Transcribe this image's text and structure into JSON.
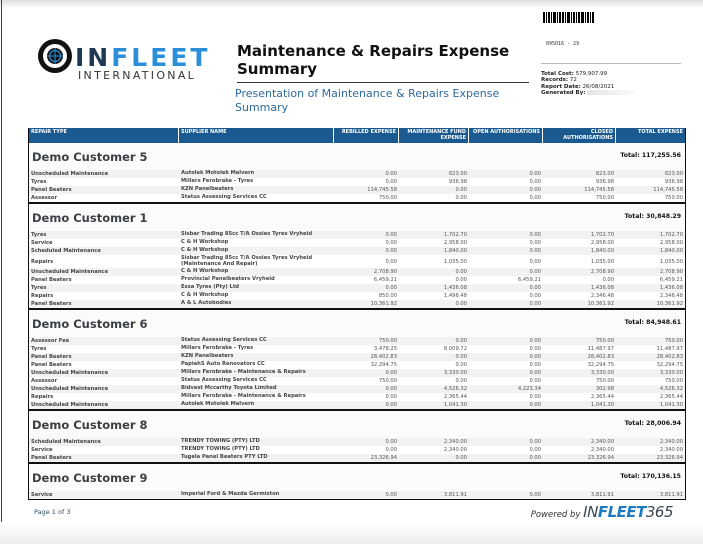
{
  "logo": {
    "name": "INFLEET",
    "sub": "INTERNATIONAL"
  },
  "report": {
    "title": "Maintenance & Repairs Expense Summary",
    "subtitle": "Presentation of Maintenance & Repairs Expense Summary"
  },
  "barcode_text": "095016 - 29",
  "meta": {
    "total_cost_label": "Total Cost:",
    "total_cost": "579,907.99",
    "records_label": "Records:",
    "records": "72",
    "report_date_label": "Report Date:",
    "report_date": "26/08/2021",
    "generated_by_label": "Generated By:"
  },
  "columns": [
    "REPAIR TYPE",
    "SUPPLIER NAME",
    "REBILLED EXPENSE",
    "MAINTENANCE FUND EXPENSE",
    "OPEN AUTHORISATIONS",
    "CLOSED AUTHORISATIONS",
    "TOTAL EXPENSE"
  ],
  "groups": [
    {
      "name": "Demo Customer 5",
      "total": "Total: 117,255.56",
      "rows": [
        [
          "Unscheduled Maintenance",
          "Autolek Motolek Malvern",
          "0.00",
          "823.00",
          "0.00",
          "823.00",
          "823.00"
        ],
        [
          "Tyres",
          "Millers Ferobrake - Tyres",
          "0.00",
          "936.98",
          "0.00",
          "936.98",
          "936.98"
        ],
        [
          "Panel Beaters",
          "KZN Panelbeaters",
          "114,745.58",
          "0.00",
          "0.00",
          "114,745.58",
          "114,745.58"
        ],
        [
          "Assessor",
          "Status Assessing Services CC",
          "750.00",
          "0.00",
          "0.00",
          "750.00",
          "750.00"
        ]
      ]
    },
    {
      "name": "Demo Customer 1",
      "total": "Total: 30,848.29",
      "rows": [
        [
          "Tyres",
          "Sisbar Trading 85cc T/A Ossies Tyres Vryheid",
          "0.00",
          "1,702.70",
          "0.00",
          "1,702.70",
          "1,702.70"
        ],
        [
          "Service",
          "C & H Workshop",
          "0.00",
          "2,958.00",
          "0.00",
          "2,958.00",
          "2,958.00"
        ],
        [
          "Scheduled Maintenance",
          "C & H Workshop",
          "0.00",
          "1,840.00",
          "0.00",
          "1,840.00",
          "1,840.00"
        ],
        [
          "Repairs",
          "Sisbar Trading 85cc T/A Ossies Tyres Vryheid (Maintenance And Repair)",
          "0.00",
          "1,035.00",
          "0.00",
          "1,035.00",
          "1,035.00"
        ],
        [
          "Unscheduled Maintenance",
          "C & H Workshop",
          "2,708.90",
          "0.00",
          "0.00",
          "2,708.90",
          "2,708.90"
        ],
        [
          "Panel Beaters",
          "Provincial Panelbeaters Vryheid",
          "6,459.21",
          "0.00",
          "6,459.21",
          "0.00",
          "6,459.21"
        ],
        [
          "Tyres",
          "Essa Tyres (Pty) Ltd",
          "0.00",
          "1,436.08",
          "0.00",
          "1,436.08",
          "1,436.08"
        ],
        [
          "Repairs",
          "C & H Workshop",
          "850.00",
          "1,496.48",
          "0.00",
          "2,346.48",
          "2,346.48"
        ],
        [
          "Panel Beaters",
          "A & L Autobodies",
          "10,361.92",
          "0.00",
          "0.00",
          "10,361.92",
          "10,361.92"
        ]
      ]
    },
    {
      "name": "Demo Customer 6",
      "total": "Total: 84,948.61",
      "rows": [
        [
          "Assessor Fee",
          "Status Assessing Services CC",
          "750.00",
          "0.00",
          "0.00",
          "750.00",
          "750.00"
        ],
        [
          "Tyres",
          "Millers Ferobrake - Tyres",
          "3,478.25",
          "8,009.72",
          "0.00",
          "11,487.97",
          "11,487.97"
        ],
        [
          "Panel Beaters",
          "KZN Panelbeaters",
          "28,402.83",
          "0.00",
          "0.00",
          "28,402.83",
          "28,402.83"
        ],
        [
          "Panel Beaters",
          "PapiahS Auto Renovators CC",
          "32,294.75",
          "0.00",
          "0.00",
          "32,294.75",
          "32,294.75"
        ],
        [
          "Unscheduled Maintenance",
          "Millers Ferobrake - Maintenance & Repairs",
          "0.00",
          "3,330.00",
          "0.00",
          "3,330.00",
          "3,330.00"
        ],
        [
          "Assessor",
          "Status Assessing Services CC",
          "750.00",
          "0.00",
          "0.00",
          "750.00",
          "750.00"
        ],
        [
          "Unscheduled Maintenance",
          "Bidvest Mccarthy Toyota Limited",
          "0.00",
          "4,526.32",
          "4,223.34",
          "302.98",
          "4,526.32"
        ],
        [
          "Repairs",
          "Millers Ferobrake - Maintenance & Repairs",
          "0.00",
          "2,365.44",
          "0.00",
          "2,365.44",
          "2,365.44"
        ],
        [
          "Unscheduled Maintenance",
          "Autolek Motolek Malvern",
          "0.00",
          "1,041.30",
          "0.00",
          "1,041.30",
          "1,041.30"
        ]
      ]
    },
    {
      "name": "Demo Customer 8",
      "total": "Total: 28,006.94",
      "rows": [
        [
          "Scheduled Maintenance",
          "TRENDY TOWING (PTY) LTD",
          "0.00",
          "2,340.00",
          "0.00",
          "2,340.00",
          "2,340.00"
        ],
        [
          "Service",
          "TRENDY TOWING (PTY) LTD",
          "0.00",
          "2,340.00",
          "0.00",
          "2,340.00",
          "2,340.00"
        ],
        [
          "Panel Beaters",
          "Tugela Panel Beaters PTY LTD",
          "23,326.94",
          "0.00",
          "0.00",
          "23,326.94",
          "23,326.94"
        ]
      ]
    },
    {
      "name": "Demo Customer 9",
      "total": "Total: 170,136.15",
      "rows": [
        [
          "Service",
          "Imperial Ford & Mazda Germiston",
          "0.00",
          "3,811.91",
          "0.00",
          "3,811.91",
          "3,811.91"
        ]
      ]
    }
  ],
  "footer": {
    "page": "Page 1 of 3",
    "powered_by": "Powered by",
    "brand_a": "IN",
    "brand_b": "FLEET",
    "brand_c": "365"
  }
}
